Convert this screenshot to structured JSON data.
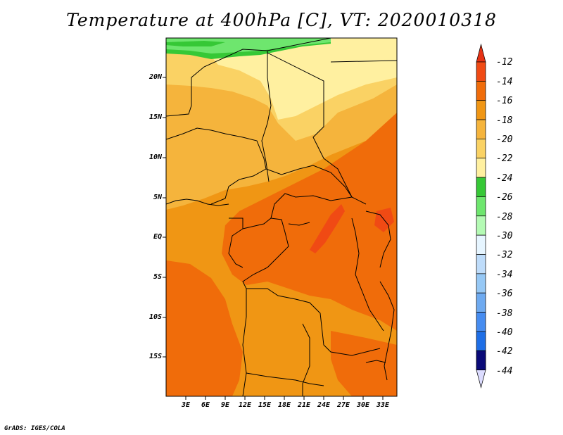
{
  "title": "Temperature at 400hPa [C], VT: 2020010318",
  "credit": "GrADS: IGES/COLA",
  "map": {
    "lat_labels": [
      "20N",
      "15N",
      "10N",
      "5N",
      "EQ",
      "5S",
      "10S",
      "15S"
    ],
    "lon_labels": [
      "3E",
      "6E",
      "9E",
      "12E",
      "15E",
      "18E",
      "21E",
      "24E",
      "27E",
      "30E",
      "33E"
    ]
  },
  "colorbar": {
    "labels": [
      "-12",
      "-14",
      "-16",
      "-18",
      "-20",
      "-22",
      "-24",
      "-26",
      "-28",
      "-30",
      "-32",
      "-34",
      "-36",
      "-38",
      "-40",
      "-42",
      "-44"
    ],
    "colors": [
      "#f04a14",
      "#f06c0a",
      "#f09614",
      "#f5b43c",
      "#fad264",
      "#fff0a0",
      "#36c836",
      "#6ee66e",
      "#b4fab4",
      "#e6f5ff",
      "#bedcfa",
      "#96c8f5",
      "#6eaaf0",
      "#468cf0",
      "#1e6ee6",
      "#0a4bc8",
      "#0a0a78"
    ],
    "top_arrow_color": "#e63214",
    "bottom_arrow_color": "#dcdcff"
  }
}
